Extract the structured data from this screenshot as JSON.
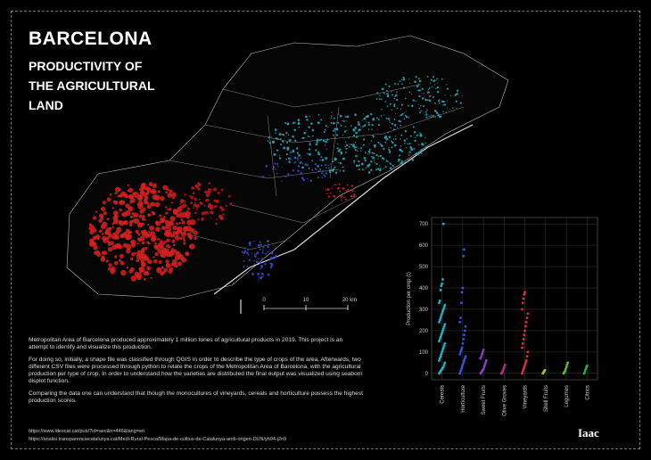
{
  "poster": {
    "title": "BARCELONA",
    "subtitle_lines": [
      "PRODUCTIVITY OF",
      "THE  AGRICULTURAL",
      "LAND"
    ],
    "scale_labels": [
      "0",
      "10",
      "20 km"
    ],
    "paragraphs": [
      "Metropolitan Area of Barcelona produced approximately 1 million tones of agricultural products in 2019. This project is an attempt to identify and visualize this production.",
      "For doing so, initially, a shape file was classified through QGIS in order to describe the type of crops of the area. Afterwards, two different CSV files were processed through python to relate the crops of the Metropolitan Area of Barcelona, with the agricultural production per type of crop. In order to understand how the varieties are distributed the final output was visualized using seaborn displot function.",
      "Comparing the data one can understand that though the monocultures of vineyards, cereals and horticulture possess the highest production scores."
    ],
    "links": [
      "https://www.idescat.cat/pub/?id=aec&n=446&lang=en",
      "https://analisi.transparenciacatalunya.cat/Medi-Rural-Pesca/Mapa-de-cultius-de-Catalunya-amb-origen-DUN/yh94-j2n9"
    ],
    "logo": "Iaac"
  },
  "chart_data": {
    "type": "strip",
    "y_label": "Production per crop (t)",
    "categories": [
      "Cereals",
      "Horticulture",
      "Sweet Fruits",
      "Olive Groves",
      "Vineyards",
      "Shell Fruits",
      "Legumes",
      "Citrics"
    ],
    "colors": [
      "#1fb5c4",
      "#3a55d8",
      "#8a3fc4",
      "#b0308f",
      "#e0303a",
      "#9fc42a",
      "#4fc43a",
      "#2fb04a"
    ],
    "values": [
      [
        0,
        5,
        10,
        15,
        20,
        25,
        30,
        40,
        50,
        60,
        70,
        80,
        90,
        100,
        110,
        120,
        130,
        140,
        150,
        160,
        170,
        180,
        190,
        200,
        210,
        220,
        230,
        240,
        250,
        260,
        270,
        280,
        290,
        300,
        310,
        320,
        330,
        340,
        390,
        410,
        420,
        440,
        700
      ],
      [
        0,
        10,
        20,
        30,
        40,
        50,
        60,
        70,
        80,
        90,
        100,
        110,
        120,
        140,
        160,
        180,
        200,
        220,
        240,
        260,
        330,
        380,
        400,
        550,
        580
      ],
      [
        0,
        5,
        10,
        15,
        20,
        30,
        40,
        50,
        60,
        70,
        80,
        90,
        100,
        110
      ],
      [
        0,
        5,
        10,
        20,
        30,
        40
      ],
      [
        0,
        10,
        20,
        30,
        40,
        50,
        60,
        80,
        100,
        120,
        140,
        160,
        180,
        200,
        220,
        240,
        260,
        280,
        300,
        330,
        350,
        370,
        380
      ],
      [
        0,
        5,
        10,
        15
      ],
      [
        0,
        5,
        10,
        20,
        30,
        40,
        50
      ],
      [
        0,
        10,
        20,
        30,
        35
      ]
    ],
    "ylim": [
      -30,
      730
    ],
    "yticks": [
      0,
      100,
      200,
      300,
      400,
      500,
      600,
      700
    ],
    "grid": true
  }
}
